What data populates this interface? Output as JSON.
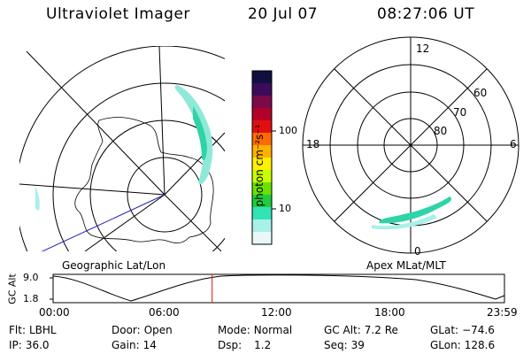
{
  "header": {
    "title": "Ultraviolet Imager",
    "date": "20 Jul 07",
    "time": "08:27:06 UT"
  },
  "colorbar": {
    "unit": "photon cm⁻²s⁻¹",
    "ticks": [
      "100",
      "10"
    ],
    "colors": [
      "#101040",
      "#3b0b5a",
      "#7a0a4a",
      "#b1002a",
      "#e10f0f",
      "#ff6a00",
      "#ffb000",
      "#fff000",
      "#c7ff00",
      "#6be000",
      "#1fce3c",
      "#33e3b5",
      "#a8f0ea",
      "#e8f8f8"
    ]
  },
  "panels": {
    "geo_label": "Geographic Lat/Lon",
    "apex_label": "Apex MLat/MLT",
    "mlt_labels": {
      "top": "12",
      "left": "18",
      "right": "6",
      "bottom": "0"
    },
    "mlat_labels": [
      "60",
      "70",
      "80"
    ]
  },
  "gc_alt": {
    "ylabel": "GC Alt",
    "ticks": [
      "9.0",
      "1.8"
    ],
    "time_ticks": [
      "00:00",
      "06:00",
      "12:00",
      "18:00",
      "23:59"
    ],
    "marker_time": "08:27:06"
  },
  "status": {
    "flt": {
      "label": "Flt:",
      "value": "LBHL"
    },
    "ip": {
      "label": "IP:",
      "value": "36.0"
    },
    "door": {
      "label": "Door:",
      "value": "Open"
    },
    "gain": {
      "label": "Gain:",
      "value": "14"
    },
    "mode": {
      "label": "Mode:",
      "value": "Normal"
    },
    "dsp": {
      "label": "Dsp:",
      "value": "1.2"
    },
    "gcalt": {
      "label": "GC Alt:",
      "value": "7.2 Re"
    },
    "seq": {
      "label": "Seq:",
      "value": "39"
    },
    "glat": {
      "label": "GLat:",
      "value": "−74.6"
    },
    "glon": {
      "label": "GLon:",
      "value": "128.6"
    }
  }
}
